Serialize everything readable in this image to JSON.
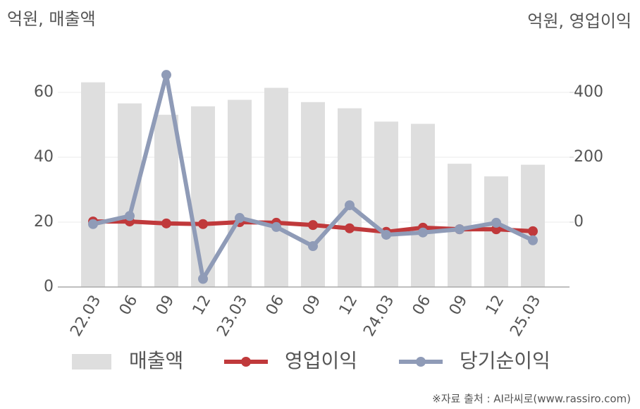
{
  "chart_data": {
    "type": "bar",
    "y_label": "억원, 매출액",
    "y2_label": "억원, 영업이익",
    "source": "※자료 출처 : AI라씨로(www.rassiro.com)",
    "categories": [
      "22.03",
      "06",
      "09",
      "12",
      "23.03",
      "06",
      "09",
      "12",
      "24.03",
      "06",
      "09",
      "12",
      "25.03"
    ],
    "series": [
      {
        "name": "매출액",
        "type": "bar",
        "color": "#dedede",
        "values": [
          63.1,
          56.6,
          53.1,
          55.7,
          57.7,
          61.4,
          57.0,
          55.1,
          51.0,
          50.3,
          38.0,
          34.1,
          37.7
        ]
      },
      {
        "name": "영업이익",
        "type": "line",
        "axis": "y2",
        "color": "#c0393b",
        "values": [
          2,
          2,
          -4,
          -6,
          0,
          -2,
          -9,
          -19,
          -30,
          -17,
          -22,
          -22,
          -28
        ]
      },
      {
        "name": "당기순이익",
        "type": "line",
        "axis": "y2",
        "color": "#8f9bb7",
        "values": [
          -6,
          19,
          454,
          -175,
          13,
          -15,
          -74,
          52,
          -39,
          -32,
          -22,
          -2,
          -56
        ]
      }
    ],
    "ylim": [
      0,
      70
    ],
    "yticks": [
      0,
      20,
      40,
      60
    ],
    "y2lim": [
      -200,
      500
    ],
    "y2ticks": [
      0,
      200,
      400
    ],
    "grid": true
  }
}
